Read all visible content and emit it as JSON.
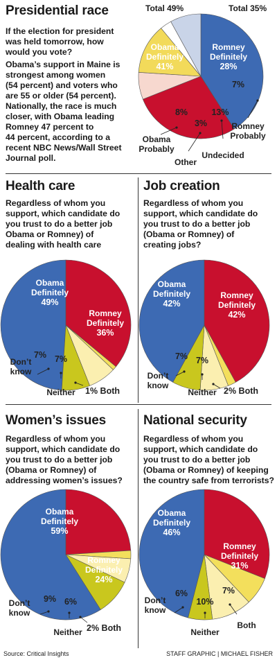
{
  "colors": {
    "obama_definitely": "#3d6ab3",
    "romney_definitely": "#c8102e",
    "romney_probably": "#f7d8cf",
    "undecided": "#f2da5a",
    "other": "#ffffff",
    "obama_probably": "#c9d4e8",
    "dont_know": "#c9c71e",
    "neither": "#fbefb0",
    "both": "#f3df5c"
  },
  "sections": {
    "presidential": {
      "title": "Presidential race",
      "question": [
        "If the election for president",
        "was held tomorrow, how",
        "would you vote?"
      ],
      "note": [
        "Obama’s support in Maine is",
        "strongest among women",
        "(54 percent) and voters who",
        "are 55 or older (54 percent).",
        "Nationally, the race is much",
        "closer, with Obama leading",
        "Romney 47 percent to",
        "44 percent, according to a",
        "recent NBC News/Wall Street",
        "Journal poll."
      ],
      "total_left": "Total 49%",
      "total_right": "Total 35%"
    },
    "health": {
      "title": "Health care",
      "question": [
        "Regardless of whom you",
        "support, which candidate do",
        "you trust to do a better job",
        "Obama or Romney) of",
        "dealing with health care"
      ]
    },
    "jobs": {
      "title": "Job creation",
      "question": [
        "Regardless of whom you",
        "support, which candidate do",
        "you trust to do a better job",
        "(Obama or Romney) of",
        "creating jobs?"
      ]
    },
    "women": {
      "title": "Women’s issues",
      "question": [
        "Regardless of whom you",
        "support, which candidate do",
        "you trust to do a better job",
        "(Obama or Romney) of",
        "addressing women’s issues?"
      ]
    },
    "security": {
      "title": "National security",
      "question": [
        "Regardless of whom you",
        "support, which candidate do",
        "you trust to do a better job",
        "(Obama or Romney) of keeping",
        "the country safe from terrorists?"
      ]
    }
  },
  "chart_data": [
    {
      "id": "presidential",
      "type": "pie",
      "title": "Presidential race",
      "slices": [
        {
          "label": "Obama Definitely",
          "value": 41,
          "pct_label": "41%",
          "color": "#3d6ab3"
        },
        {
          "label": "Romney Definitely",
          "value": 28,
          "pct_label": "28%",
          "color": "#c8102e"
        },
        {
          "label": "Romney Probably",
          "value": 7,
          "pct_label": "7%",
          "color": "#f7d8cf"
        },
        {
          "label": "Undecided",
          "value": 13,
          "pct_label": "13%",
          "color": "#f2da5a"
        },
        {
          "label": "Other",
          "value": 3,
          "pct_label": "3%",
          "color": "#ffffff"
        },
        {
          "label": "Obama Probably",
          "value": 8,
          "pct_label": "8%",
          "color": "#c9d4e8"
        }
      ]
    },
    {
      "id": "health",
      "type": "pie",
      "title": "Health care",
      "slices": [
        {
          "label": "Obama Definitely",
          "value": 49,
          "pct_label": "49%",
          "color": "#3d6ab3"
        },
        {
          "label": "Romney Definitely",
          "value": 36,
          "pct_label": "36%",
          "color": "#c8102e"
        },
        {
          "label": "Both",
          "value": 1,
          "pct_label": "1% Both",
          "color": "#f3df5c"
        },
        {
          "label": "Neither",
          "value": 7,
          "pct_label": "7%",
          "color": "#fbefb0"
        },
        {
          "label": "Don’t know",
          "value": 7,
          "pct_label": "7%",
          "color": "#c9c71e"
        }
      ]
    },
    {
      "id": "jobs",
      "type": "pie",
      "title": "Job creation",
      "slices": [
        {
          "label": "Obama Definitely",
          "value": 42,
          "pct_label": "42%",
          "color": "#3d6ab3"
        },
        {
          "label": "Romney Definitely",
          "value": 42,
          "pct_label": "42%",
          "color": "#c8102e"
        },
        {
          "label": "Both",
          "value": 2,
          "pct_label": "2% Both",
          "color": "#f3df5c"
        },
        {
          "label": "Neither",
          "value": 7,
          "pct_label": "7%",
          "color": "#fbefb0"
        },
        {
          "label": "Don’t know",
          "value": 7,
          "pct_label": "7%",
          "color": "#c9c71e"
        }
      ]
    },
    {
      "id": "women",
      "type": "pie",
      "title": "Women’s issues",
      "slices": [
        {
          "label": "Obama Definitely",
          "value": 59,
          "pct_label": "59%",
          "color": "#3d6ab3"
        },
        {
          "label": "Romney Definitely",
          "value": 24,
          "pct_label": "24%",
          "color": "#c8102e"
        },
        {
          "label": "Both",
          "value": 2,
          "pct_label": "2% Both",
          "color": "#f3df5c"
        },
        {
          "label": "Neither",
          "value": 6,
          "pct_label": "6%",
          "color": "#fbefb0"
        },
        {
          "label": "Don’t know",
          "value": 9,
          "pct_label": "9%",
          "color": "#c9c71e"
        }
      ]
    },
    {
      "id": "security",
      "type": "pie",
      "title": "National security",
      "slices": [
        {
          "label": "Obama Definitely",
          "value": 46,
          "pct_label": "46%",
          "color": "#3d6ab3"
        },
        {
          "label": "Romney Definitely",
          "value": 31,
          "pct_label": "31%",
          "color": "#c8102e"
        },
        {
          "label": "Both",
          "value": 7,
          "pct_label": "7%",
          "color": "#f3df5c"
        },
        {
          "label": "Neither",
          "value": 10,
          "pct_label": "10%",
          "color": "#fbefb0"
        },
        {
          "label": "Don’t know",
          "value": 6,
          "pct_label": "6%",
          "color": "#c9c71e"
        }
      ]
    }
  ],
  "footer": {
    "source": "Source: Critical Insights",
    "credit": "STAFF GRAPHIC | MICHAEL FISHER"
  }
}
